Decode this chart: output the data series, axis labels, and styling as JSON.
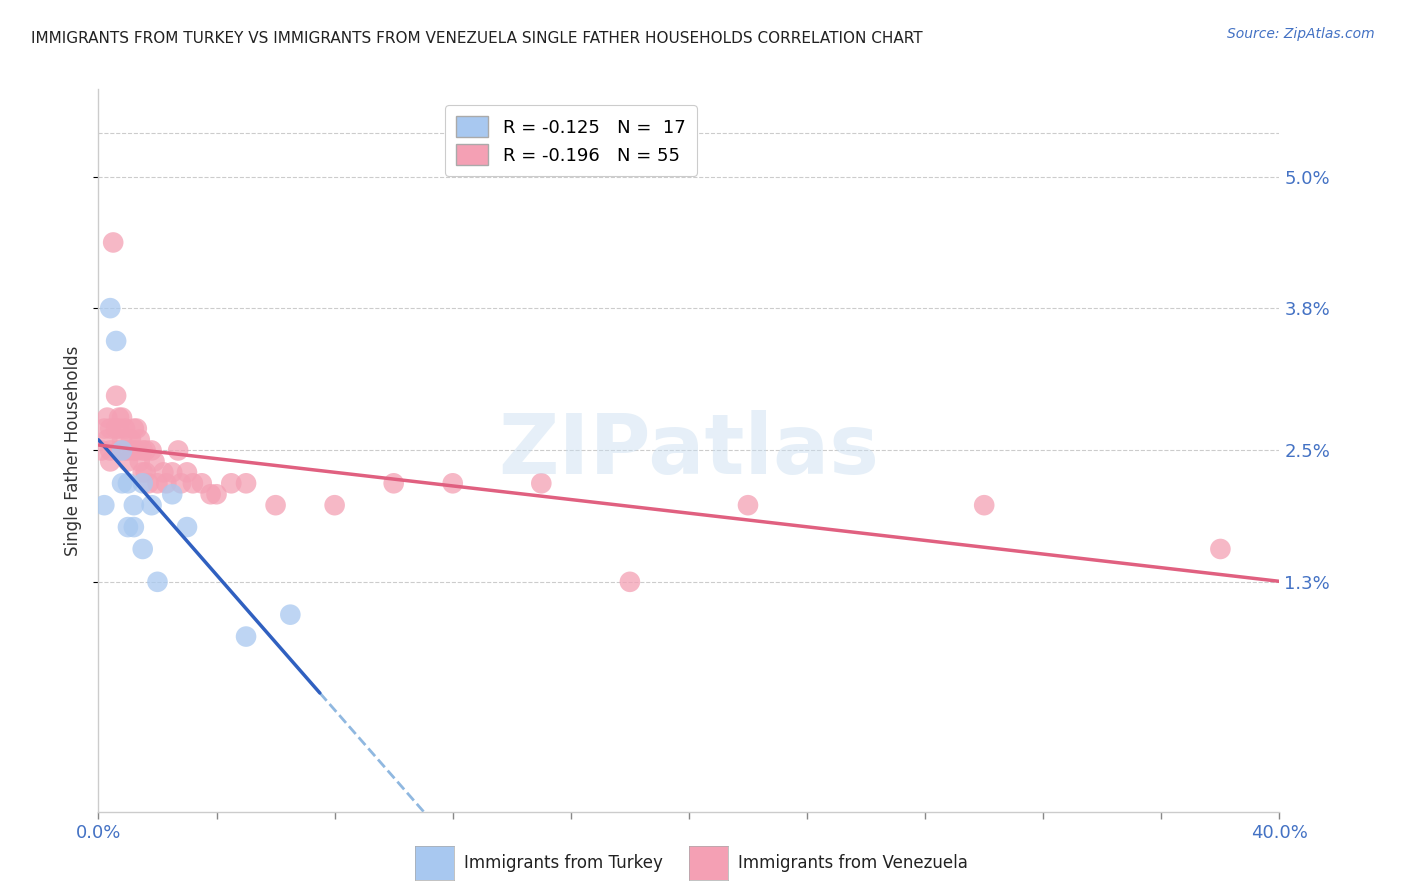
{
  "title": "IMMIGRANTS FROM TURKEY VS IMMIGRANTS FROM VENEZUELA SINGLE FATHER HOUSEHOLDS CORRELATION CHART",
  "source": "Source: ZipAtlas.com",
  "ylabel": "Single Father Households",
  "ytick_labels": [
    "5.0%",
    "3.8%",
    "2.5%",
    "1.3%"
  ],
  "ytick_values": [
    0.05,
    0.038,
    0.025,
    0.013
  ],
  "xmin": 0.0,
  "xmax": 0.4,
  "ymin": -0.008,
  "ymax": 0.058,
  "turkey_color": "#a8c8f0",
  "venezuela_color": "#f4a0b4",
  "turkey_line_color": "#3060c0",
  "venezuela_line_color": "#e06080",
  "dashed_line_color": "#90b8e0",
  "legend_R_turkey": "R = -0.125",
  "legend_N_turkey": "N = 17",
  "legend_R_venezuela": "R = -0.196",
  "legend_N_venezuela": "N = 55",
  "turkey_x": [
    0.002,
    0.004,
    0.006,
    0.008,
    0.008,
    0.01,
    0.01,
    0.012,
    0.012,
    0.015,
    0.015,
    0.018,
    0.02,
    0.025,
    0.03,
    0.05,
    0.065
  ],
  "turkey_y": [
    0.02,
    0.038,
    0.035,
    0.025,
    0.022,
    0.022,
    0.018,
    0.02,
    0.018,
    0.022,
    0.016,
    0.02,
    0.013,
    0.021,
    0.018,
    0.008,
    0.01
  ],
  "venezuela_x": [
    0.001,
    0.002,
    0.003,
    0.003,
    0.004,
    0.004,
    0.004,
    0.005,
    0.006,
    0.006,
    0.007,
    0.007,
    0.007,
    0.008,
    0.008,
    0.009,
    0.009,
    0.01,
    0.01,
    0.011,
    0.012,
    0.012,
    0.013,
    0.013,
    0.014,
    0.014,
    0.015,
    0.015,
    0.016,
    0.016,
    0.017,
    0.018,
    0.019,
    0.02,
    0.022,
    0.023,
    0.025,
    0.027,
    0.028,
    0.03,
    0.032,
    0.035,
    0.038,
    0.04,
    0.045,
    0.05,
    0.06,
    0.08,
    0.1,
    0.12,
    0.15,
    0.18,
    0.22,
    0.3,
    0.38
  ],
  "venezuela_y": [
    0.025,
    0.027,
    0.028,
    0.026,
    0.027,
    0.025,
    0.024,
    0.044,
    0.03,
    0.027,
    0.028,
    0.027,
    0.025,
    0.028,
    0.026,
    0.027,
    0.025,
    0.025,
    0.024,
    0.026,
    0.027,
    0.025,
    0.027,
    0.025,
    0.026,
    0.024,
    0.025,
    0.023,
    0.025,
    0.023,
    0.022,
    0.025,
    0.024,
    0.022,
    0.023,
    0.022,
    0.023,
    0.025,
    0.022,
    0.023,
    0.022,
    0.022,
    0.021,
    0.021,
    0.022,
    0.022,
    0.02,
    0.02,
    0.022,
    0.022,
    0.022,
    0.013,
    0.02,
    0.02,
    0.016
  ],
  "background_color": "#ffffff",
  "watermark_text": "ZIPatlas",
  "grid_color": "#cccccc",
  "title_color": "#222222",
  "axis_label_color": "#4472c4",
  "tick_color": "#888888"
}
